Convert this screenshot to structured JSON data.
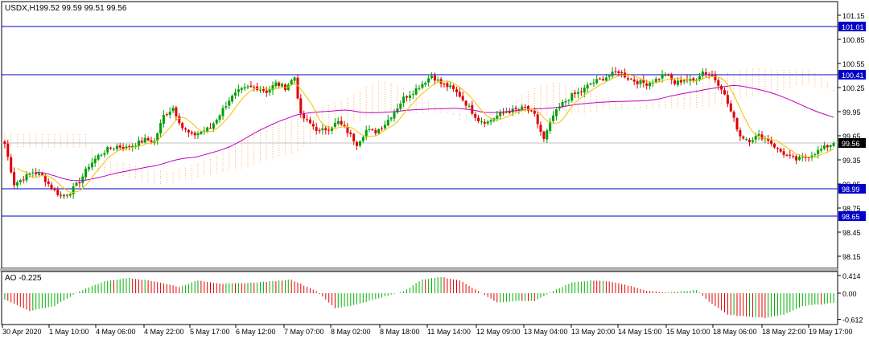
{
  "chart_data": [
    {
      "type": "candlestick",
      "symbol": "USDX",
      "timeframe": "H1",
      "header_label": "USDX,H1",
      "ohlc_label": "99.52 99.59 99.51 99.56",
      "ylim": [
        98.1,
        101.2
      ],
      "y_ticks": [
        "101.15",
        "100.85",
        "100.55",
        "100.25",
        "99.95",
        "99.65",
        "99.35",
        "99.05",
        "98.75",
        "98.45",
        "98.15"
      ],
      "horizontal_lines": [
        {
          "value": 101.01,
          "label": "101.01",
          "color": "#0000c8"
        },
        {
          "value": 100.41,
          "label": "100.41",
          "color": "#0000c8"
        },
        {
          "value": 98.99,
          "label": "98.99",
          "color": "#0000c8"
        },
        {
          "value": 98.65,
          "label": "98.65",
          "color": "#0000c8"
        }
      ],
      "bid_line": {
        "value": 99.56,
        "label": "99.56"
      },
      "x_ticks": [
        "30 Apr 2020",
        "1 May 10:00",
        "4 May 06:00",
        "4 May 22:00",
        "5 May 17:00",
        "6 May 12:00",
        "7 May 07:00",
        "8 May 02:00",
        "8 May 18:00",
        "11 May 14:00",
        "12 May 09:00",
        "13 May 04:00",
        "13 May 20:00",
        "14 May 15:00",
        "15 May 10:00",
        "18 May 06:00",
        "18 May 22:00",
        "19 May 17:00"
      ],
      "price_path": [
        [
          0,
          99.55
        ],
        [
          3,
          99.05
        ],
        [
          6,
          99.12
        ],
        [
          9,
          99.2
        ],
        [
          12,
          99.15
        ],
        [
          15,
          99.0
        ],
        [
          18,
          98.9
        ],
        [
          21,
          98.95
        ],
        [
          24,
          99.08
        ],
        [
          27,
          99.28
        ],
        [
          30,
          99.4
        ],
        [
          33,
          99.48
        ],
        [
          36,
          99.52
        ],
        [
          39,
          99.5
        ],
        [
          42,
          99.55
        ],
        [
          45,
          99.6
        ],
        [
          48,
          99.58
        ],
        [
          51,
          99.9
        ],
        [
          54,
          100.0
        ],
        [
          57,
          99.75
        ],
        [
          60,
          99.65
        ],
        [
          63,
          99.7
        ],
        [
          66,
          99.75
        ],
        [
          69,
          99.92
        ],
        [
          72,
          100.1
        ],
        [
          75,
          100.2
        ],
        [
          78,
          100.25
        ],
        [
          81,
          100.25
        ],
        [
          84,
          100.2
        ],
        [
          87,
          100.3
        ],
        [
          90,
          100.25
        ],
        [
          93,
          100.38
        ],
        [
          95,
          99.9
        ],
        [
          98,
          99.8
        ],
        [
          101,
          99.7
        ],
        [
          104,
          99.75
        ],
        [
          107,
          99.82
        ],
        [
          110,
          99.7
        ],
        [
          113,
          99.55
        ],
        [
          116,
          99.72
        ],
        [
          119,
          99.7
        ],
        [
          122,
          99.8
        ],
        [
          125,
          99.95
        ],
        [
          128,
          100.12
        ],
        [
          131,
          100.2
        ],
        [
          134,
          100.3
        ],
        [
          137,
          100.4
        ],
        [
          140,
          100.3
        ],
        [
          143,
          100.25
        ],
        [
          146,
          100.15
        ],
        [
          149,
          100.0
        ],
        [
          152,
          99.85
        ],
        [
          155,
          99.82
        ],
        [
          158,
          99.9
        ],
        [
          161,
          99.95
        ],
        [
          164,
          99.97
        ],
        [
          167,
          100.0
        ],
        [
          170,
          99.9
        ],
        [
          173,
          99.6
        ],
        [
          176,
          99.9
        ],
        [
          179,
          100.05
        ],
        [
          182,
          100.15
        ],
        [
          185,
          100.2
        ],
        [
          188,
          100.3
        ],
        [
          191,
          100.35
        ],
        [
          194,
          100.4
        ],
        [
          197,
          100.45
        ],
        [
          200,
          100.37
        ],
        [
          203,
          100.32
        ],
        [
          206,
          100.3
        ],
        [
          209,
          100.35
        ],
        [
          212,
          100.42
        ],
        [
          215,
          100.3
        ],
        [
          218,
          100.35
        ],
        [
          221,
          100.33
        ],
        [
          224,
          100.45
        ],
        [
          227,
          100.4
        ],
        [
          230,
          100.25
        ],
        [
          233,
          99.95
        ],
        [
          236,
          99.65
        ],
        [
          239,
          99.6
        ],
        [
          242,
          99.65
        ],
        [
          245,
          99.6
        ],
        [
          248,
          99.48
        ],
        [
          251,
          99.4
        ],
        [
          254,
          99.35
        ],
        [
          257,
          99.38
        ],
        [
          260,
          99.44
        ],
        [
          263,
          99.5
        ],
        [
          266,
          99.56
        ]
      ],
      "indicators": {
        "fast_ma_color": "#f5c000",
        "slow_ma_color": "#c000c0",
        "ichimoku_cloud_colors": [
          "#ffa860",
          "#c8a0e0"
        ]
      }
    },
    {
      "type": "bar",
      "indicator": "AO",
      "label": "AO -0.225",
      "ylim": [
        -0.7,
        0.5
      ],
      "y_ticks": [
        "0.414",
        "0.00",
        "-0.612"
      ],
      "up_color": "#00b000",
      "down_color": "#e00000",
      "value_path": [
        [
          0,
          -0.15
        ],
        [
          8,
          -0.42
        ],
        [
          16,
          -0.3
        ],
        [
          24,
          0.05
        ],
        [
          32,
          0.28
        ],
        [
          40,
          0.36
        ],
        [
          48,
          0.28
        ],
        [
          56,
          0.15
        ],
        [
          62,
          0.3
        ],
        [
          70,
          0.22
        ],
        [
          78,
          0.24
        ],
        [
          86,
          0.28
        ],
        [
          92,
          0.32
        ],
        [
          100,
          0.05
        ],
        [
          106,
          -0.35
        ],
        [
          112,
          -0.28
        ],
        [
          120,
          -0.12
        ],
        [
          128,
          0.05
        ],
        [
          134,
          0.32
        ],
        [
          140,
          0.38
        ],
        [
          146,
          0.3
        ],
        [
          152,
          0.05
        ],
        [
          158,
          -0.22
        ],
        [
          164,
          -0.18
        ],
        [
          170,
          -0.18
        ],
        [
          176,
          0.05
        ],
        [
          182,
          0.25
        ],
        [
          188,
          0.3
        ],
        [
          194,
          0.28
        ],
        [
          200,
          0.18
        ],
        [
          206,
          0.06
        ],
        [
          212,
          0.02
        ],
        [
          218,
          0.04
        ],
        [
          222,
          0.08
        ],
        [
          226,
          -0.2
        ],
        [
          232,
          -0.5
        ],
        [
          238,
          -0.55
        ],
        [
          244,
          -0.58
        ],
        [
          250,
          -0.5
        ],
        [
          256,
          -0.3
        ],
        [
          262,
          -0.26
        ],
        [
          266,
          -0.22
        ]
      ]
    }
  ]
}
